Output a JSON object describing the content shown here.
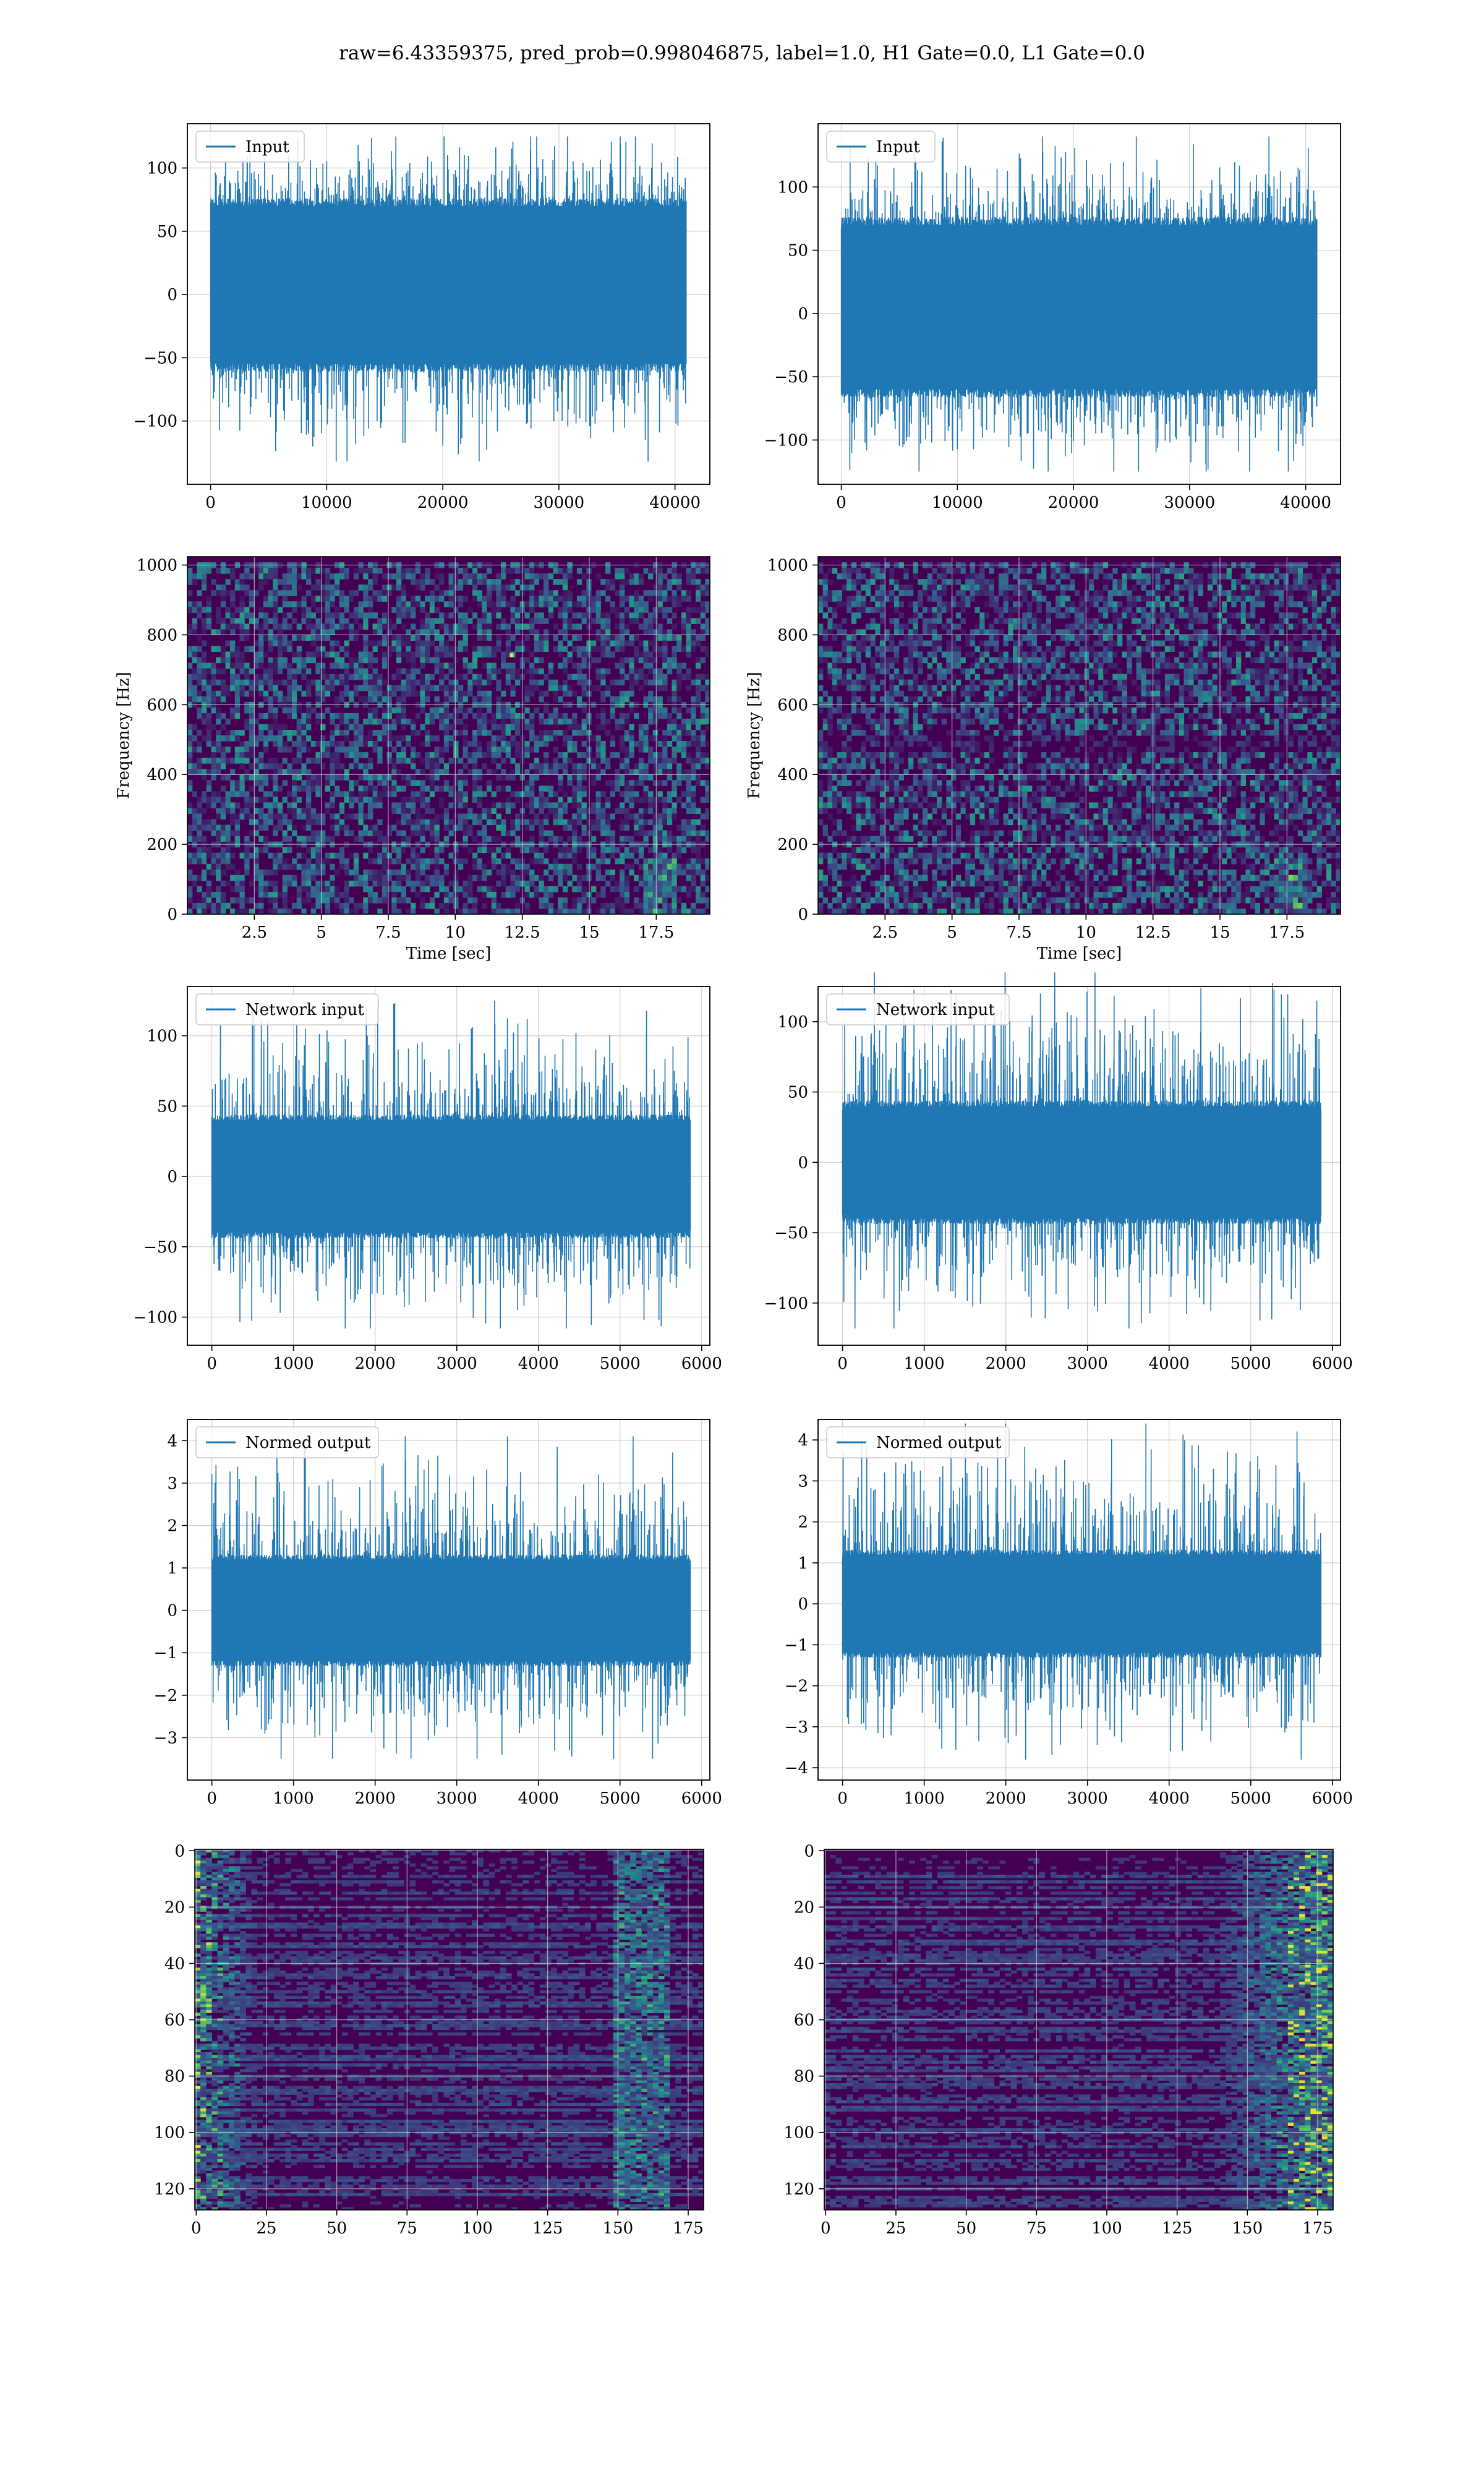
{
  "figure": {
    "title": "raw=6.43359375, pred_prob=0.998046875, label=1.0, H1 Gate=0.0, L1 Gate=0.0"
  },
  "colors": {
    "line": "#1f77b4",
    "grid": "#b0b0b0",
    "viridis_dark": "#440154",
    "viridis_mid": "#21918c",
    "viridis_bright": "#fde725"
  },
  "chart_data": [
    {
      "type": "line",
      "legend": "Input",
      "legend_loc": "upper-left",
      "xlim": [
        -2000,
        43000
      ],
      "ylim": [
        -150,
        135
      ],
      "xticks": [
        0,
        10000,
        20000,
        30000,
        40000
      ],
      "yticks": [
        -100,
        -50,
        0,
        50,
        100
      ],
      "n_samples": 40960,
      "envelope": {
        "core": [
          -55,
          70
        ],
        "max": 125,
        "min": -132
      },
      "grid": true
    },
    {
      "type": "line",
      "legend": "Input",
      "legend_loc": "upper-left",
      "xlim": [
        -2000,
        43000
      ],
      "ylim": [
        -135,
        150
      ],
      "xticks": [
        0,
        10000,
        20000,
        30000,
        40000
      ],
      "yticks": [
        -100,
        -50,
        0,
        50,
        100
      ],
      "n_samples": 40960,
      "envelope": {
        "core": [
          -60,
          70
        ],
        "max": 140,
        "min": -125
      },
      "grid": true
    },
    {
      "type": "heatmap",
      "xlabel": "Time [sec]",
      "ylabel": "Frequency [Hz]",
      "xlim": [
        0,
        19.5
      ],
      "ylim": [
        0,
        1024
      ],
      "xticks": [
        2.5,
        5.0,
        7.5,
        10.0,
        12.5,
        15.0,
        17.5
      ],
      "yticks": [
        0,
        200,
        400,
        600,
        800,
        1000
      ],
      "colormap": "viridis",
      "features": "random noise speckle; faint chirp near t=17.5 s below 150 Hz; one hot pixel near t=12 s, 740 Hz",
      "grid": true
    },
    {
      "type": "heatmap",
      "xlabel": "Time [sec]",
      "ylabel": "Frequency [Hz]",
      "xlim": [
        0,
        19.5
      ],
      "ylim": [
        0,
        1024
      ],
      "xticks": [
        2.5,
        5.0,
        7.5,
        10.0,
        12.5,
        15.0,
        17.5
      ],
      "yticks": [
        0,
        200,
        400,
        600,
        800,
        1000
      ],
      "colormap": "viridis",
      "features": "random noise speckle; chirp near t=17.5 s below 150 Hz; darker band near 500 Hz",
      "grid": true
    },
    {
      "type": "line",
      "legend": "Network input",
      "legend_loc": "upper-left",
      "xlim": [
        -300,
        6100
      ],
      "ylim": [
        -120,
        135
      ],
      "xticks": [
        0,
        1000,
        2000,
        3000,
        4000,
        5000,
        6000
      ],
      "yticks": [
        -100,
        -50,
        0,
        50,
        100
      ],
      "n_samples": 5860,
      "envelope": {
        "core": [
          -40,
          40
        ],
        "max": 125,
        "min": -108
      },
      "grid": true
    },
    {
      "type": "line",
      "legend": "Network input",
      "legend_loc": "upper-left",
      "xlim": [
        -300,
        6100
      ],
      "ylim": [
        -130,
        125
      ],
      "xticks": [
        0,
        1000,
        2000,
        3000,
        4000,
        5000,
        6000
      ],
      "yticks": [
        -100,
        -50,
        0,
        50,
        100
      ],
      "n_samples": 5860,
      "envelope": {
        "core": [
          -40,
          40
        ],
        "max": 135,
        "min": -118
      },
      "grid": true
    },
    {
      "type": "line",
      "legend": "Normed output",
      "legend_loc": "upper-left",
      "xlim": [
        -300,
        6100
      ],
      "ylim": [
        -4.0,
        4.5
      ],
      "xticks": [
        0,
        1000,
        2000,
        3000,
        4000,
        5000,
        6000
      ],
      "yticks": [
        -3,
        -2,
        -1,
        0,
        1,
        2,
        3,
        4
      ],
      "n_samples": 5860,
      "envelope": {
        "core": [
          -1.2,
          1.2
        ],
        "max": 4.1,
        "min": -3.5
      },
      "grid": true
    },
    {
      "type": "line",
      "legend": "Normed output",
      "legend_loc": "upper-left",
      "xlim": [
        -300,
        6100
      ],
      "ylim": [
        -4.3,
        4.5
      ],
      "xticks": [
        0,
        1000,
        2000,
        3000,
        4000,
        5000,
        6000
      ],
      "yticks": [
        -4,
        -3,
        -2,
        -1,
        0,
        1,
        2,
        3,
        4
      ],
      "n_samples": 5860,
      "envelope": {
        "core": [
          -1.2,
          1.2
        ],
        "max": 4.4,
        "min": -3.8
      },
      "grid": true
    },
    {
      "type": "heatmap",
      "xlim": [
        -0.5,
        180.5
      ],
      "ylim": [
        127.5,
        -0.5
      ],
      "xticks": [
        0,
        25,
        50,
        75,
        100,
        125,
        150,
        175
      ],
      "yticks": [
        0,
        20,
        40,
        60,
        80,
        100,
        120
      ],
      "colormap": "viridis",
      "features": "horizontal striped feature map; bright teal/yellow blobs at columns 0-20; noisy activity at columns 150-165",
      "grid": true
    },
    {
      "type": "heatmap",
      "xlim": [
        -0.5,
        180.5
      ],
      "ylim": [
        127.5,
        -0.5
      ],
      "xticks": [
        0,
        25,
        50,
        75,
        100,
        125,
        150,
        175
      ],
      "yticks": [
        0,
        20,
        40,
        60,
        80,
        100,
        120
      ],
      "colormap": "viridis",
      "features": "horizontal striped feature map; bright activity concentrated at columns 145-180 with yellow highlights near columns 165-178",
      "grid": true
    }
  ]
}
